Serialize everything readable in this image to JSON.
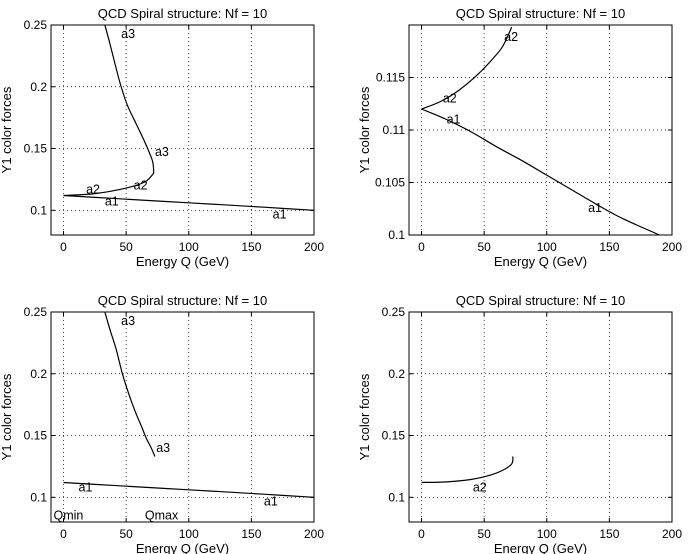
{
  "chart_data": [
    {
      "type": "line",
      "title": "QCD Spiral structure: Nf = 10",
      "xlabel": "Energy Q (GeV)",
      "ylabel": "Y1 color forces",
      "xlim": [
        -10,
        200
      ],
      "ylim": [
        0.08,
        0.25
      ],
      "xticks": [
        0,
        50,
        100,
        150,
        200
      ],
      "yticks": [
        0.1,
        0.15,
        0.2,
        0.25
      ],
      "ytick_labels": [
        "0.1",
        "0.15",
        "0.2",
        "0.25"
      ],
      "grid": true,
      "series": [
        {
          "name": "a1",
          "x": [
            0,
            40,
            80,
            120,
            160,
            200
          ],
          "y": [
            0.112,
            0.1096,
            0.1072,
            0.1049,
            0.1025,
            0.1
          ]
        },
        {
          "name": "a2",
          "x": [
            0,
            25,
            50,
            65,
            72
          ],
          "y": [
            0.112,
            0.1135,
            0.118,
            0.123,
            0.13
          ]
        },
        {
          "name": "a3",
          "x": [
            72,
            71,
            65,
            58,
            51,
            46,
            42,
            37,
            33
          ],
          "y": [
            0.13,
            0.14,
            0.155,
            0.17,
            0.185,
            0.2,
            0.215,
            0.235,
            0.25
          ]
        }
      ],
      "annotations": [
        {
          "text": "a1",
          "x": 33,
          "y": 0.104
        },
        {
          "text": "a1",
          "x": 167,
          "y": 0.0935
        },
        {
          "text": "a2",
          "x": 18,
          "y": 0.1135
        },
        {
          "text": "a2",
          "x": 56,
          "y": 0.117
        },
        {
          "text": "a3",
          "x": 73,
          "y": 0.144
        },
        {
          "text": "a3",
          "x": 46,
          "y": 0.2395
        }
      ]
    },
    {
      "type": "line",
      "title": "QCD Spiral structure: Nf = 10",
      "xlabel": "Energy Q (GeV)",
      "ylabel": "Y1 color forces",
      "xlim": [
        -10,
        200
      ],
      "ylim": [
        0.1,
        0.12
      ],
      "xticks": [
        0,
        50,
        100,
        150,
        200
      ],
      "yticks": [
        0.1,
        0.105,
        0.11,
        0.115
      ],
      "ytick_labels": [
        "0.1",
        "0.105",
        "0.11",
        "0.115"
      ],
      "grid": true,
      "series": [
        {
          "name": "a1",
          "x": [
            0,
            20,
            40,
            60,
            80,
            100,
            120,
            140,
            160,
            190
          ],
          "y": [
            0.112,
            0.111,
            0.1098,
            0.1084,
            0.1071,
            0.1057,
            0.1043,
            0.1029,
            0.1016,
            0.1
          ]
        },
        {
          "name": "a2",
          "x": [
            0,
            15,
            30,
            45,
            57,
            65,
            72
          ],
          "y": [
            0.112,
            0.1127,
            0.1138,
            0.1153,
            0.1168,
            0.118,
            0.1198
          ]
        }
      ],
      "annotations": [
        {
          "text": "a2",
          "x": 17,
          "y": 0.1126
        },
        {
          "text": "a1",
          "x": 20,
          "y": 0.1106
        },
        {
          "text": "a2",
          "x": 66,
          "y": 0.1185
        },
        {
          "text": "a1",
          "x": 133,
          "y": 0.1022
        }
      ]
    },
    {
      "type": "line",
      "title": "QCD Spiral structure: Nf = 10",
      "xlabel": "Energy Q (GeV)",
      "ylabel": "Y1 color forces",
      "xlim": [
        -10,
        200
      ],
      "ylim": [
        0.08,
        0.25
      ],
      "xticks": [
        0,
        50,
        100,
        150,
        200
      ],
      "yticks": [
        0.1,
        0.15,
        0.2,
        0.25
      ],
      "ytick_labels": [
        "0.1",
        "0.15",
        "0.2",
        "0.25"
      ],
      "grid": true,
      "series": [
        {
          "name": "a1",
          "x": [
            0,
            40,
            80,
            120,
            160,
            200
          ],
          "y": [
            0.112,
            0.1096,
            0.1072,
            0.1049,
            0.1025,
            0.1
          ]
        },
        {
          "name": "a3",
          "x": [
            33,
            37,
            42,
            47,
            52,
            57,
            62,
            66,
            70,
            73
          ],
          "y": [
            0.25,
            0.236,
            0.22,
            0.2,
            0.184,
            0.17,
            0.158,
            0.148,
            0.14,
            0.133
          ]
        }
      ],
      "annotations": [
        {
          "text": "a1",
          "x": 12,
          "y": 0.1045
        },
        {
          "text": "a1",
          "x": 160,
          "y": 0.0935
        },
        {
          "text": "a3",
          "x": 46,
          "y": 0.2395
        },
        {
          "text": "a3",
          "x": 74,
          "y": 0.1365
        },
        {
          "text": "Qmin",
          "x": -8,
          "y": 0.082
        },
        {
          "text": "Qmax",
          "x": 65,
          "y": 0.082
        }
      ]
    },
    {
      "type": "line",
      "title": "QCD Spiral structure: Nf = 10",
      "xlabel": "Energy Q (GeV)",
      "ylabel": "Y1 color forces",
      "xlim": [
        -10,
        200
      ],
      "ylim": [
        0.08,
        0.25
      ],
      "xticks": [
        0,
        50,
        100,
        150,
        200
      ],
      "yticks": [
        0.1,
        0.15,
        0.2,
        0.25
      ],
      "ytick_labels": [
        "0.1",
        "0.15",
        "0.2",
        "0.25"
      ],
      "grid": true,
      "series": [
        {
          "name": "a2",
          "x": [
            0,
            20,
            40,
            55,
            65,
            72,
            73
          ],
          "y": [
            0.112,
            0.1125,
            0.1145,
            0.118,
            0.122,
            0.127,
            0.133
          ]
        }
      ],
      "annotations": [
        {
          "text": "a2",
          "x": 41,
          "y": 0.1045
        }
      ]
    }
  ]
}
